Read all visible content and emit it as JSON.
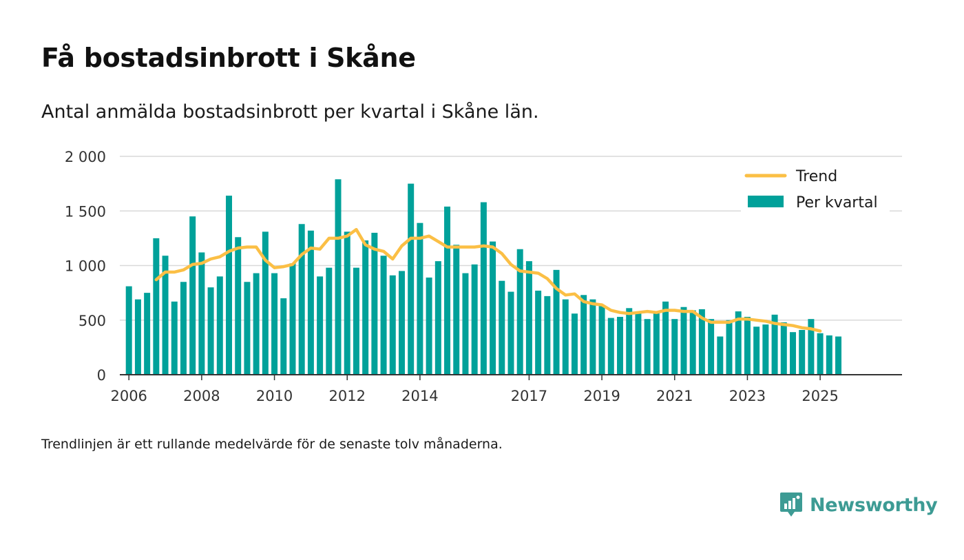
{
  "colors": {
    "bar": "#00a19a",
    "trend": "#fbbf45",
    "grid": "#d9d9d9",
    "axis": "#333333",
    "brand": "#3d9b94"
  },
  "brand": {
    "name": "Newsworthy",
    "icon": "chart-bubble-icon"
  },
  "footnote": "Trendlinjen är ett rullande medelvärde för de senaste tolv månaderna.",
  "chart_data": {
    "type": "bar",
    "title": "Få bostadsinbrott i Skåne",
    "subtitle": "Antal anmälda bostadsinbrott per kvartal i Skåne län.",
    "xlabel": "",
    "ylabel": "",
    "ylim": [
      0,
      2000
    ],
    "xlim": [
      2005.75,
      2027.25
    ],
    "yticks": [
      {
        "value": 0,
        "label": "0"
      },
      {
        "value": 500,
        "label": "500"
      },
      {
        "value": 1000,
        "label": "1 000"
      },
      {
        "value": 1500,
        "label": "1 500"
      },
      {
        "value": 2000,
        "label": "2 000"
      }
    ],
    "xticks": [
      {
        "value": 2006.0,
        "label": "2006"
      },
      {
        "value": 2008.0,
        "label": "2008"
      },
      {
        "value": 2010.0,
        "label": "2010"
      },
      {
        "value": 2012.0,
        "label": "2012"
      },
      {
        "value": 2014.0,
        "label": "2014"
      },
      {
        "value": 2017.0,
        "label": "2017"
      },
      {
        "value": 2019.0,
        "label": "2019"
      },
      {
        "value": 2021.0,
        "label": "2021"
      },
      {
        "value": 2023.0,
        "label": "2023"
      },
      {
        "value": 2025.0,
        "label": "2025"
      }
    ],
    "grid": true,
    "legend_position": "top-right",
    "series": [
      {
        "name": "Per kvartal",
        "type": "bar",
        "start": 2006.0,
        "step": 0.25,
        "values": [
          810,
          690,
          750,
          1250,
          1090,
          670,
          850,
          1450,
          1120,
          800,
          900,
          1640,
          1260,
          850,
          930,
          1310,
          930,
          700,
          1020,
          1380,
          1320,
          900,
          980,
          1790,
          1310,
          980,
          1230,
          1300,
          1090,
          910,
          950,
          1750,
          1390,
          890,
          1040,
          1540,
          1190,
          930,
          1010,
          1580,
          1220,
          860,
          760,
          1150,
          1040,
          770,
          720,
          960,
          690,
          560,
          730,
          690,
          630,
          520,
          530,
          610,
          560,
          510,
          580,
          670,
          510,
          620,
          590,
          600,
          510,
          350,
          500,
          580,
          530,
          440,
          460,
          550,
          480,
          390,
          410,
          510,
          380,
          360,
          350
        ]
      },
      {
        "name": "Trend",
        "type": "line",
        "start": 2006.75,
        "step": 0.25,
        "values": [
          870,
          940,
          940,
          960,
          1010,
          1020,
          1060,
          1080,
          1130,
          1160,
          1170,
          1170,
          1050,
          980,
          990,
          1010,
          1100,
          1160,
          1150,
          1250,
          1250,
          1270,
          1330,
          1190,
          1150,
          1130,
          1060,
          1180,
          1250,
          1250,
          1270,
          1220,
          1170,
          1170,
          1170,
          1170,
          1180,
          1170,
          1110,
          1010,
          950,
          940,
          930,
          880,
          790,
          730,
          740,
          670,
          650,
          640,
          590,
          570,
          560,
          570,
          580,
          570,
          590,
          590,
          580,
          580,
          520,
          480,
          480,
          480,
          510,
          510,
          500,
          490,
          470,
          460,
          450,
          430,
          420,
          400
        ]
      }
    ]
  }
}
